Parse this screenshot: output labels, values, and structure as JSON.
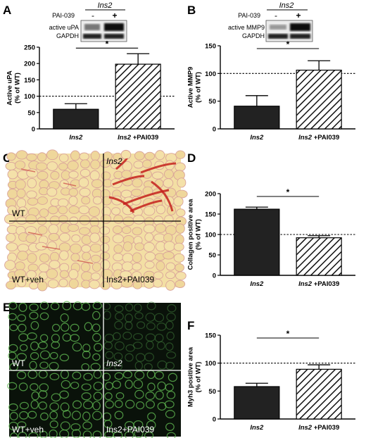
{
  "panels": {
    "A": {
      "letter": "A"
    },
    "B": {
      "letter": "B"
    },
    "C": {
      "letter": "C"
    },
    "D": {
      "letter": "D"
    },
    "E": {
      "letter": "E"
    },
    "F": {
      "letter": "F"
    }
  },
  "blots": {
    "A": {
      "group": "Ins2",
      "treat_label": "PAI-039",
      "minus": "-",
      "plus": "+",
      "rows": [
        "active uPA",
        "GAPDH"
      ]
    },
    "B": {
      "group": "Ins2",
      "treat_label": "PAI-039",
      "minus": "-",
      "plus": "+",
      "rows": [
        "active MMP9",
        "GAPDH"
      ]
    }
  },
  "micrographs": {
    "C": {
      "labels": [
        "WT",
        "Ins2",
        "WT+veh",
        "Ins2+PAI039"
      ],
      "palette": "#f2dfa6"
    },
    "E": {
      "labels": [
        "WT",
        "Ins2",
        "WT+veh",
        "Ins2+PAI039"
      ],
      "palette": "#0b150b"
    }
  },
  "significance": "*",
  "chart_data": [
    {
      "type": "bar",
      "panel": "A",
      "ylabel": "Active uPA\n(% of WT)",
      "ylim": [
        0,
        250
      ],
      "yticks": [
        0,
        50,
        100,
        150,
        200,
        250
      ],
      "categories": [
        "Ins2",
        "Ins2 +PAI039"
      ],
      "values": [
        60,
        198
      ],
      "errors": [
        17,
        32
      ],
      "reference_line": 100,
      "significance": "*"
    },
    {
      "type": "bar",
      "panel": "B",
      "ylabel": "Active MMP9\n(% of WT)",
      "ylim": [
        0,
        150
      ],
      "yticks": [
        0,
        50,
        100,
        150
      ],
      "categories": [
        "Ins2",
        "Ins2 +PAI039"
      ],
      "values": [
        41,
        106
      ],
      "errors": [
        19,
        17
      ],
      "reference_line": 100,
      "significance": "*"
    },
    {
      "type": "bar",
      "panel": "D",
      "ylabel": "Collagen positive area\n(% of WT)",
      "ylim": [
        0,
        200
      ],
      "yticks": [
        0,
        50,
        100,
        150,
        200
      ],
      "categories": [
        "Ins2",
        "Ins2 +PAI039"
      ],
      "values": [
        162,
        92
      ],
      "errors": [
        5,
        5
      ],
      "reference_line": 100,
      "significance": "*"
    },
    {
      "type": "bar",
      "panel": "F",
      "ylabel": "Myh3 positive area\n(% of WT)",
      "ylim": [
        0,
        150
      ],
      "yticks": [
        0,
        50,
        100,
        150
      ],
      "categories": [
        "Ins2",
        "Ins2 +PAI039"
      ],
      "values": [
        58,
        89
      ],
      "errors": [
        6,
        8
      ],
      "reference_line": 100,
      "significance": "*"
    }
  ]
}
